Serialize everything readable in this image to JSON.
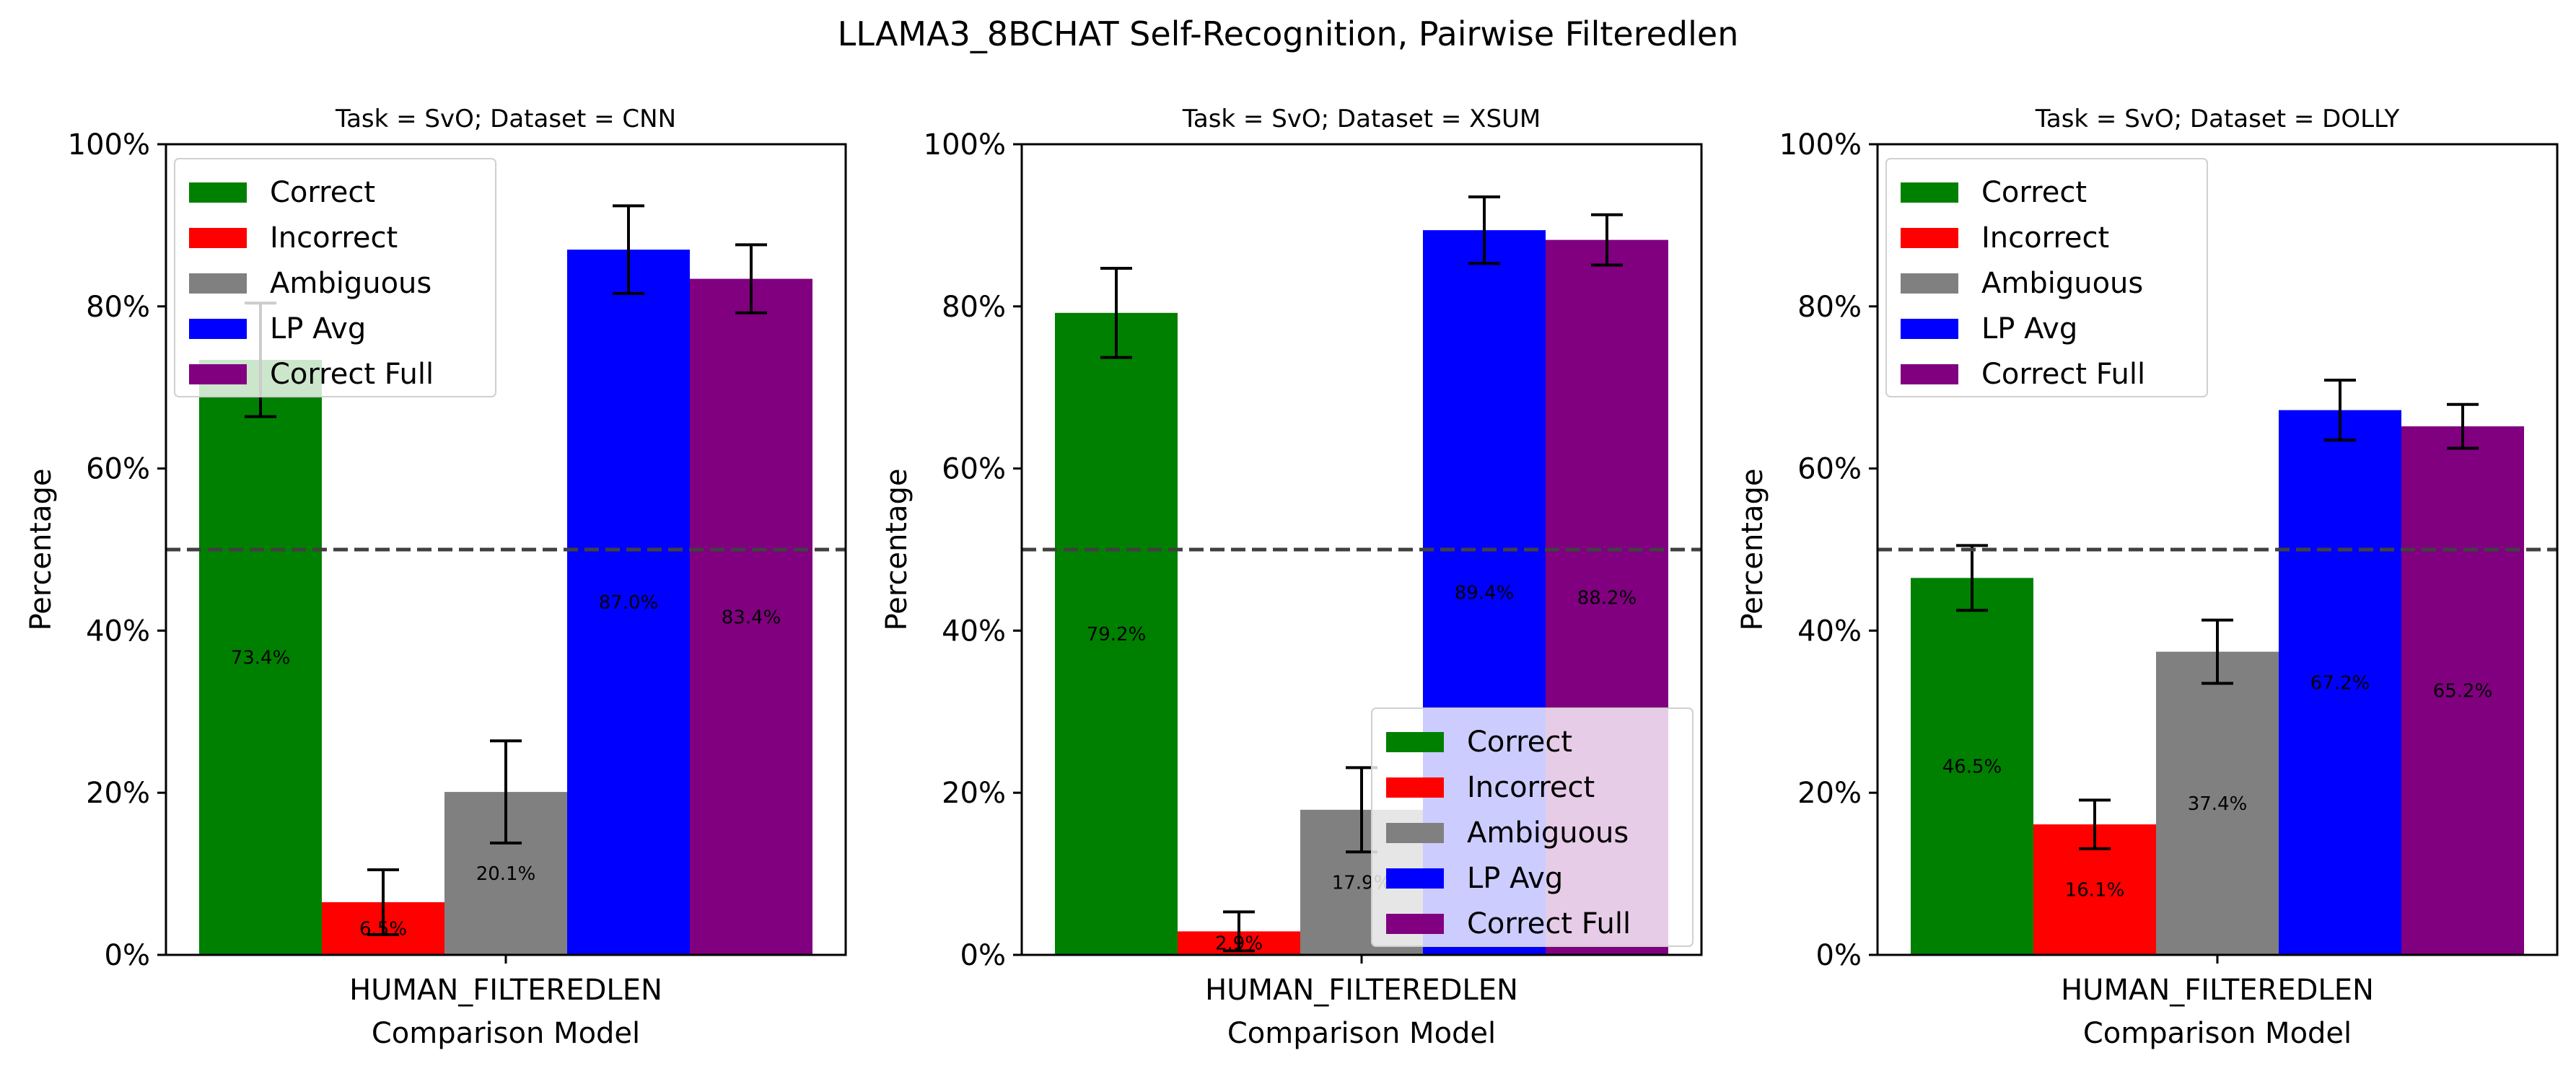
{
  "title": "LLAMA3_8BCHAT Self-Recognition, Pairwise Filteredlen",
  "colors": {
    "Correct": "#008000",
    "Incorrect": "#ff0000",
    "Ambiguous": "#808080",
    "LP Avg": "#0000ff",
    "Correct Full": "#800080"
  },
  "chart_data": [
    {
      "type": "bar",
      "title": "Task = SvO;  Dataset = CNN",
      "xlabel": "Comparison Model",
      "ylabel": "Percentage",
      "categories": [
        "HUMAN_FILTEREDLEN"
      ],
      "ylim": [
        0,
        100
      ],
      "yticks": [
        "0%",
        "20%",
        "40%",
        "60%",
        "80%",
        "100%"
      ],
      "reference_line": 50,
      "legend_position": "upper left",
      "series": [
        {
          "name": "Correct",
          "values": [
            73.4
          ],
          "error": [
            7.0
          ],
          "label": "73.4%"
        },
        {
          "name": "Incorrect",
          "values": [
            6.5
          ],
          "error": [
            4.0
          ],
          "label": "6.5%"
        },
        {
          "name": "Ambiguous",
          "values": [
            20.1
          ],
          "error": [
            6.3
          ],
          "label": "20.1%"
        },
        {
          "name": "LP Avg",
          "values": [
            87.0
          ],
          "error": [
            5.4
          ],
          "label": "87.0%"
        },
        {
          "name": "Correct Full",
          "values": [
            83.4
          ],
          "error": [
            4.2
          ],
          "label": "83.4%"
        }
      ]
    },
    {
      "type": "bar",
      "title": "Task = SvO;  Dataset = XSUM",
      "xlabel": "Comparison Model",
      "ylabel": "Percentage",
      "categories": [
        "HUMAN_FILTEREDLEN"
      ],
      "ylim": [
        0,
        100
      ],
      "yticks": [
        "0%",
        "20%",
        "40%",
        "60%",
        "80%",
        "100%"
      ],
      "reference_line": 50,
      "legend_position": "lower right",
      "series": [
        {
          "name": "Correct",
          "values": [
            79.2
          ],
          "error": [
            5.5
          ],
          "label": "79.2%"
        },
        {
          "name": "Incorrect",
          "values": [
            2.9
          ],
          "error": [
            2.4
          ],
          "label": "2.9%"
        },
        {
          "name": "Ambiguous",
          "values": [
            17.9
          ],
          "error": [
            5.2
          ],
          "label": "17.9%"
        },
        {
          "name": "LP Avg",
          "values": [
            89.4
          ],
          "error": [
            4.1
          ],
          "label": "89.4%"
        },
        {
          "name": "Correct Full",
          "values": [
            88.2
          ],
          "error": [
            3.1
          ],
          "label": "88.2%"
        }
      ]
    },
    {
      "type": "bar",
      "title": "Task = SvO;  Dataset = DOLLY",
      "xlabel": "Comparison Model",
      "ylabel": "Percentage",
      "categories": [
        "HUMAN_FILTEREDLEN"
      ],
      "ylim": [
        0,
        100
      ],
      "yticks": [
        "0%",
        "20%",
        "40%",
        "60%",
        "80%",
        "100%"
      ],
      "reference_line": 50,
      "legend_position": "upper left",
      "series": [
        {
          "name": "Correct",
          "values": [
            46.5
          ],
          "error": [
            4.0
          ],
          "label": "46.5%"
        },
        {
          "name": "Incorrect",
          "values": [
            16.1
          ],
          "error": [
            3.0
          ],
          "label": "16.1%"
        },
        {
          "name": "Ambiguous",
          "values": [
            37.4
          ],
          "error": [
            3.9
          ],
          "label": "37.4%"
        },
        {
          "name": "LP Avg",
          "values": [
            67.2
          ],
          "error": [
            3.7
          ],
          "label": "67.2%"
        },
        {
          "name": "Correct Full",
          "values": [
            65.2
          ],
          "error": [
            2.7
          ],
          "label": "65.2%"
        }
      ]
    }
  ]
}
